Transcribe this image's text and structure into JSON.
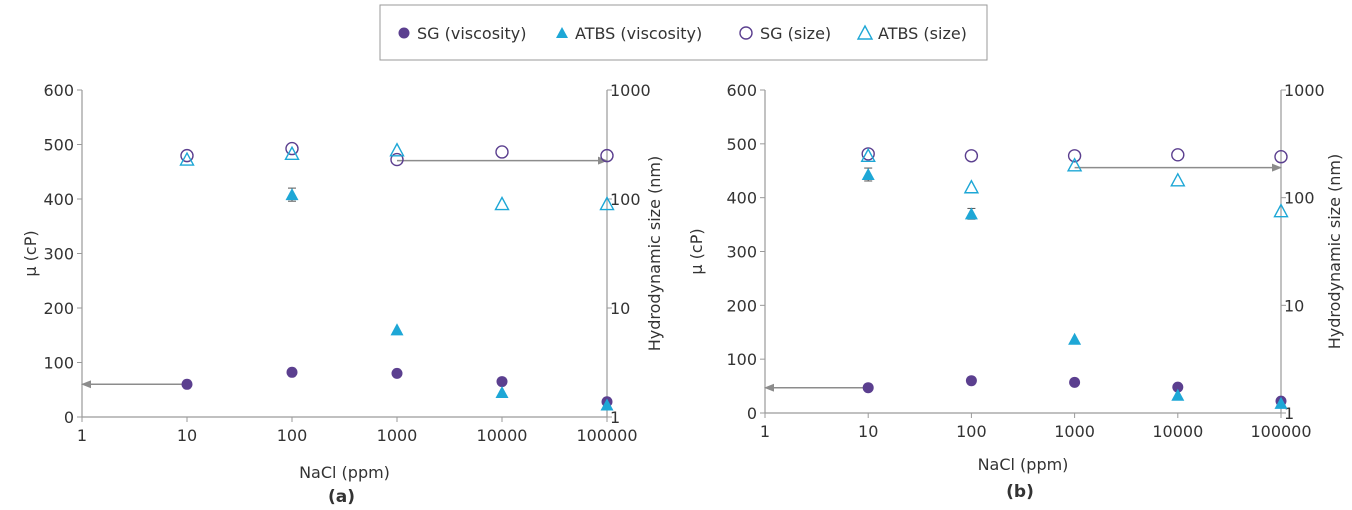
{
  "legend": {
    "items": [
      {
        "label": "SG (viscosity)",
        "marker": "circle-filled",
        "color": "#5b3f8f"
      },
      {
        "label": "ATBS (viscosity)",
        "marker": "triangle-filled",
        "color": "#1ea7d6"
      },
      {
        "label": "SG (size)",
        "marker": "circle-open",
        "color": "#5b3f8f"
      },
      {
        "label": "ATBS (size)",
        "marker": "triangle-open",
        "color": "#1ea7d6"
      }
    ]
  },
  "colors": {
    "sg": "#5b3f8f",
    "atbs": "#1ea7d6",
    "axis": "#9a9a9a",
    "arrow": "#8c8c8c",
    "text": "#333333"
  },
  "chart_data": [
    {
      "type": "scatter",
      "panel_label": "(a)",
      "xlabel": "NaCl (ppm)",
      "ylabel": "μ (cP)",
      "y2label": "Hydrodynamic size (nm)",
      "x_scale": "log",
      "xlim": [
        1,
        100000
      ],
      "x_ticks": [
        "1",
        "10",
        "100",
        "1000",
        "10000",
        "100000"
      ],
      "ylim": [
        0,
        600
      ],
      "y_ticks": [
        "0",
        "100",
        "200",
        "300",
        "400",
        "500",
        "600"
      ],
      "y2_scale": "log",
      "y2lim": [
        1,
        1000
      ],
      "y2_ticks": [
        "1",
        "10",
        "100",
        "1000"
      ],
      "grid": false,
      "series": [
        {
          "name": "SG (viscosity)",
          "axis": "left",
          "x": [
            10,
            100,
            1000,
            10000,
            100000
          ],
          "y": [
            60,
            82,
            80,
            65,
            28
          ]
        },
        {
          "name": "ATBS (viscosity)",
          "axis": "left",
          "x": [
            10,
            100,
            1000,
            10000,
            100000
          ],
          "y": [
            null,
            408,
            160,
            45,
            22
          ],
          "err": [
            null,
            12,
            null,
            null,
            null
          ]
        },
        {
          "name": "SG (size)",
          "axis": "right",
          "x": [
            10,
            100,
            1000,
            10000,
            100000
          ],
          "y": [
            250,
            290,
            230,
            270,
            250
          ]
        },
        {
          "name": "ATBS (size)",
          "axis": "right",
          "x": [
            10,
            100,
            1000,
            10000,
            100000
          ],
          "y": [
            230,
            260,
            280,
            90,
            90
          ]
        }
      ],
      "arrows": [
        {
          "from": [
            10,
            60
          ],
          "to": [
            1,
            60
          ],
          "axis": "left"
        },
        {
          "from": [
            1000,
            225
          ],
          "to": [
            100000,
            225
          ],
          "axis": "right"
        }
      ]
    },
    {
      "type": "scatter",
      "panel_label": "(b)",
      "xlabel": "NaCl (ppm)",
      "ylabel": "μ (cP)",
      "y2label": "Hydrodynamic size (nm)",
      "x_scale": "log",
      "xlim": [
        1,
        100000
      ],
      "x_ticks": [
        "1",
        "10",
        "100",
        "1000",
        "10000",
        "100000"
      ],
      "ylim": [
        0,
        600
      ],
      "y_ticks": [
        "0",
        "100",
        "200",
        "300",
        "400",
        "500",
        "600"
      ],
      "y2_scale": "log",
      "y2lim": [
        1,
        1000
      ],
      "y2_ticks": [
        "1",
        "10",
        "100",
        "1000"
      ],
      "grid": false,
      "series": [
        {
          "name": "SG (viscosity)",
          "axis": "left",
          "x": [
            10,
            100,
            1000,
            10000,
            100000
          ],
          "y": [
            47,
            60,
            57,
            48,
            22
          ]
        },
        {
          "name": "ATBS (viscosity)",
          "axis": "left",
          "x": [
            10,
            100,
            1000,
            10000,
            100000
          ],
          "y": [
            443,
            370,
            137,
            33,
            18
          ],
          "err": [
            12,
            10,
            null,
            null,
            null
          ]
        },
        {
          "name": "SG (size)",
          "axis": "right",
          "x": [
            10,
            100,
            1000,
            10000,
            100000
          ],
          "y": [
            255,
            245,
            245,
            250,
            240
          ]
        },
        {
          "name": "ATBS (size)",
          "axis": "right",
          "x": [
            10,
            100,
            1000,
            10000,
            100000
          ],
          "y": [
            245,
            125,
            200,
            145,
            75
          ]
        }
      ],
      "arrows": [
        {
          "from": [
            10,
            47
          ],
          "to": [
            1,
            47
          ],
          "axis": "left"
        },
        {
          "from": [
            1000,
            190
          ],
          "to": [
            100000,
            190
          ],
          "axis": "right"
        }
      ]
    }
  ]
}
